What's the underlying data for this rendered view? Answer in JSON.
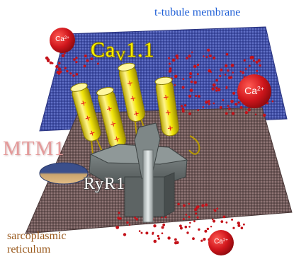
{
  "labels": {
    "ttubule": "t-tubule membrane",
    "cav_main": "Ca",
    "cav_sub": "V",
    "cav_tail": "1.1",
    "mtm1": "MTM1",
    "ryr1": "RyR1",
    "sr_line1": "sarcoplasmic",
    "sr_line2": "reticulum",
    "ca_base": "Ca",
    "ca_charge": "2+"
  },
  "colors": {
    "ttubule_membrane": "#3d4aa6",
    "sr_membrane": "#7a6060",
    "cav_channel": "#f2e60a",
    "plus_sign": "#e8141e",
    "ryr_body": "#6d7474",
    "calcium": "#c4121a",
    "mtm_blue": "#37508c",
    "mtm_tan": "#d9b07a"
  }
}
